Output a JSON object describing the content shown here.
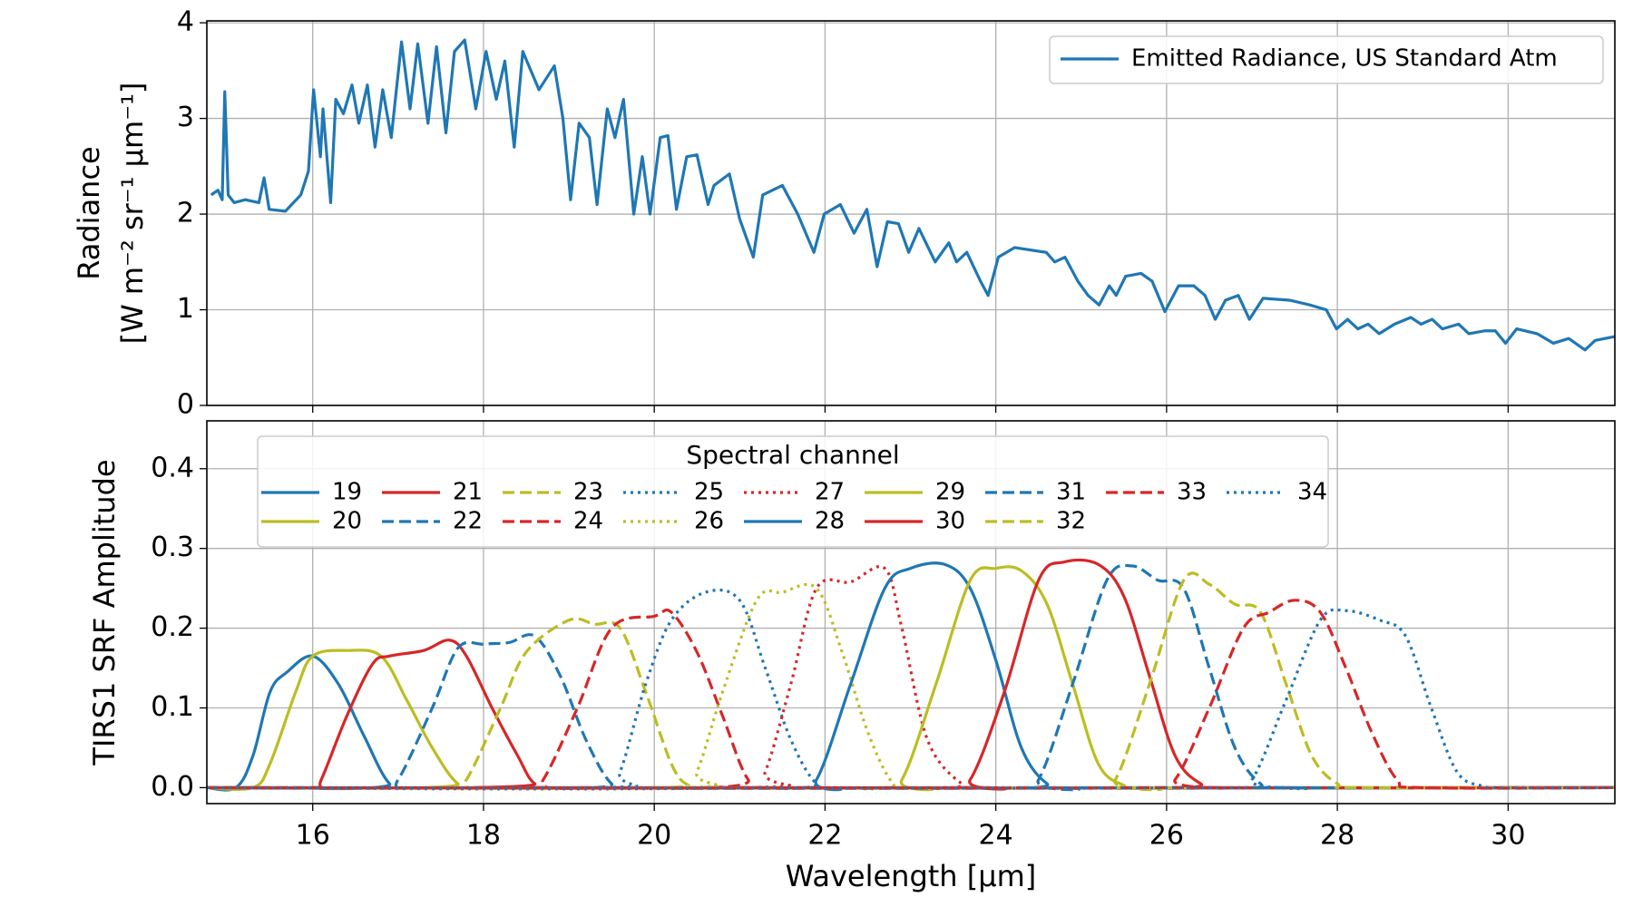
{
  "chart_data": [
    {
      "type": "line",
      "ylabel": [
        "Radiance",
        "[W m⁻² sr⁻¹ μm⁻¹]"
      ],
      "x": [
        14.81,
        14.89,
        14.94,
        14.97,
        15.01,
        15.08,
        15.21,
        15.37,
        15.43,
        15.49,
        15.68,
        15.86,
        15.95,
        16.01,
        16.09,
        16.12,
        16.21,
        16.27,
        16.36,
        16.46,
        16.54,
        16.64,
        16.73,
        16.82,
        16.92,
        17.04,
        17.14,
        17.23,
        17.35,
        17.45,
        17.56,
        17.66,
        17.78,
        17.91,
        18.03,
        18.15,
        18.25,
        18.36,
        18.46,
        18.65,
        18.83,
        18.93,
        19.02,
        19.12,
        19.24,
        19.33,
        19.45,
        19.54,
        19.64,
        19.76,
        19.86,
        19.95,
        20.07,
        20.16,
        20.26,
        20.38,
        20.5,
        20.63,
        20.7,
        20.88,
        21.0,
        21.16,
        21.27,
        21.5,
        21.68,
        21.87,
        21.99,
        22.18,
        22.34,
        22.49,
        22.61,
        22.73,
        22.86,
        22.98,
        23.1,
        23.29,
        23.45,
        23.54,
        23.66,
        23.82,
        23.91,
        24.03,
        24.22,
        24.59,
        24.69,
        24.81,
        24.96,
        25.08,
        25.21,
        25.33,
        25.41,
        25.52,
        25.7,
        25.83,
        25.98,
        26.14,
        26.32,
        26.45,
        26.57,
        26.69,
        26.84,
        26.97,
        27.13,
        27.44,
        27.68,
        27.87,
        27.99,
        28.12,
        28.24,
        28.36,
        28.49,
        28.67,
        28.86,
        28.98,
        29.11,
        29.23,
        29.42,
        29.54,
        29.73,
        29.85,
        29.97,
        30.1,
        30.34,
        30.53,
        30.71,
        30.9,
        31.02,
        31.25
      ],
      "series": [
        {
          "name": "Emitted Radiance, US Standard Atm",
          "color": "#1f77b4",
          "values": [
            2.2,
            2.25,
            2.15,
            3.28,
            2.2,
            2.12,
            2.15,
            2.12,
            2.38,
            2.05,
            2.03,
            2.2,
            2.45,
            3.3,
            2.6,
            3.1,
            2.12,
            3.2,
            3.05,
            3.35,
            2.95,
            3.35,
            2.7,
            3.3,
            2.8,
            3.8,
            3.1,
            3.78,
            2.95,
            3.75,
            2.85,
            3.7,
            3.82,
            3.1,
            3.7,
            3.2,
            3.6,
            2.7,
            3.7,
            3.3,
            3.55,
            3.0,
            2.15,
            2.95,
            2.8,
            2.1,
            3.1,
            2.8,
            3.2,
            2.0,
            2.6,
            2.0,
            2.8,
            2.82,
            2.05,
            2.6,
            2.62,
            2.1,
            2.3,
            2.42,
            1.95,
            1.55,
            2.2,
            2.3,
            2.0,
            1.6,
            2.0,
            2.1,
            1.8,
            2.05,
            1.45,
            1.92,
            1.9,
            1.6,
            1.85,
            1.5,
            1.7,
            1.5,
            1.6,
            1.3,
            1.15,
            1.55,
            1.65,
            1.6,
            1.5,
            1.55,
            1.3,
            1.15,
            1.05,
            1.25,
            1.15,
            1.35,
            1.38,
            1.3,
            0.98,
            1.25,
            1.25,
            1.15,
            0.9,
            1.1,
            1.15,
            0.9,
            1.12,
            1.1,
            1.05,
            1.0,
            0.8,
            0.9,
            0.8,
            0.85,
            0.75,
            0.85,
            0.92,
            0.85,
            0.9,
            0.8,
            0.85,
            0.75,
            0.78,
            0.78,
            0.65,
            0.8,
            0.75,
            0.65,
            0.7,
            0.58,
            0.68,
            0.72
          ]
        }
      ],
      "xlim": [
        14.76,
        31.25
      ],
      "xticks": [
        16,
        18,
        20,
        22,
        24,
        26,
        28,
        30
      ],
      "ylim": [
        0,
        4.02
      ],
      "yticks": [
        0,
        1,
        2,
        3,
        4
      ],
      "grid": true,
      "legend": "upper right"
    },
    {
      "type": "line",
      "xlabel": "Wavelength [μm]",
      "ylabel": [
        "TIRS1 SRF Amplitude"
      ],
      "legend_title": "Spectral channel",
      "legend": "upper center",
      "legend_ncol": 9,
      "series": [
        {
          "name": "19",
          "color": "#1f77b4",
          "linestyle": "solid",
          "x": [
            14.76,
            15.1,
            15.3,
            15.5,
            15.7,
            16.0,
            16.3,
            16.6,
            16.9,
            17.2,
            31.25
          ],
          "values": [
            0,
            0,
            0.04,
            0.12,
            0.145,
            0.165,
            0.13,
            0.065,
            0.005,
            0,
            0
          ]
        },
        {
          "name": "20",
          "color": "#bcbd22",
          "linestyle": "solid",
          "x": [
            14.76,
            15.3,
            15.5,
            15.8,
            16.0,
            16.4,
            16.8,
            17.1,
            17.4,
            17.7,
            18.0,
            31.25
          ],
          "values": [
            0,
            0,
            0.03,
            0.12,
            0.165,
            0.172,
            0.165,
            0.11,
            0.05,
            0.005,
            0,
            0
          ]
        },
        {
          "name": "21",
          "color": "#d62728",
          "linestyle": "solid",
          "x": [
            14.76,
            16.0,
            16.1,
            16.4,
            16.7,
            16.9,
            17.3,
            17.6,
            17.8,
            18.1,
            18.4,
            18.6,
            18.9,
            31.25
          ],
          "values": [
            0,
            0,
            0.01,
            0.09,
            0.155,
            0.165,
            0.172,
            0.185,
            0.165,
            0.1,
            0.04,
            0.005,
            0,
            0
          ]
        },
        {
          "name": "22",
          "color": "#1f77b4",
          "linestyle": "dashed",
          "x": [
            14.76,
            16.8,
            17.0,
            17.4,
            17.7,
            18.0,
            18.3,
            18.6,
            18.9,
            19.2,
            19.5,
            19.8,
            31.25
          ],
          "values": [
            0,
            0,
            0.01,
            0.1,
            0.175,
            0.18,
            0.182,
            0.19,
            0.14,
            0.06,
            0.005,
            0,
            0
          ]
        },
        {
          "name": "23",
          "color": "#bcbd22",
          "linestyle": "dashed",
          "x": [
            14.76,
            17.6,
            17.8,
            18.2,
            18.5,
            19.0,
            19.3,
            19.6,
            19.9,
            20.2,
            20.4,
            20.7,
            31.25
          ],
          "values": [
            0,
            0,
            0.01,
            0.1,
            0.17,
            0.21,
            0.205,
            0.2,
            0.12,
            0.03,
            0.003,
            0,
            0
          ]
        },
        {
          "name": "24",
          "color": "#d62728",
          "linestyle": "dashed",
          "x": [
            14.76,
            18.5,
            18.7,
            19.1,
            19.5,
            20.0,
            20.2,
            20.5,
            20.8,
            21.1,
            21.4,
            31.25
          ],
          "values": [
            0,
            0,
            0.01,
            0.1,
            0.2,
            0.215,
            0.22,
            0.17,
            0.09,
            0.01,
            0,
            0
          ]
        },
        {
          "name": "25",
          "color": "#1f77b4",
          "linestyle": "dotted",
          "x": [
            14.76,
            19.4,
            19.6,
            19.9,
            20.2,
            20.6,
            21.0,
            21.3,
            21.6,
            21.9,
            22.2,
            31.25
          ],
          "values": [
            0,
            0,
            0.02,
            0.13,
            0.21,
            0.245,
            0.235,
            0.15,
            0.06,
            0.005,
            0,
            0
          ]
        },
        {
          "name": "26",
          "color": "#bcbd22",
          "linestyle": "dotted",
          "x": [
            14.76,
            20.3,
            20.5,
            20.8,
            21.2,
            21.5,
            21.9,
            22.2,
            22.5,
            22.8,
            23.1,
            31.25
          ],
          "values": [
            0,
            0,
            0.02,
            0.12,
            0.235,
            0.245,
            0.25,
            0.17,
            0.07,
            0.005,
            0,
            0
          ]
        },
        {
          "name": "27",
          "color": "#d62728",
          "linestyle": "dotted",
          "x": [
            14.76,
            21.1,
            21.3,
            21.6,
            21.9,
            22.3,
            22.7,
            22.9,
            23.2,
            23.6,
            23.9,
            31.25
          ],
          "values": [
            0,
            0,
            0.02,
            0.13,
            0.25,
            0.258,
            0.275,
            0.2,
            0.06,
            0.005,
            0,
            0
          ]
        },
        {
          "name": "28",
          "color": "#1f77b4",
          "linestyle": "solid",
          "x": [
            14.76,
            21.6,
            21.9,
            22.3,
            22.7,
            23.0,
            23.4,
            23.7,
            24.0,
            24.3,
            24.6,
            24.9,
            31.25
          ],
          "values": [
            0,
            0,
            0.01,
            0.13,
            0.25,
            0.275,
            0.28,
            0.25,
            0.16,
            0.05,
            0.005,
            0,
            0
          ]
        },
        {
          "name": "29",
          "color": "#bcbd22",
          "linestyle": "solid",
          "x": [
            14.76,
            22.6,
            22.9,
            23.3,
            23.7,
            24.0,
            24.3,
            24.6,
            24.9,
            25.2,
            25.5,
            25.8,
            31.25
          ],
          "values": [
            0,
            0,
            0.01,
            0.13,
            0.26,
            0.275,
            0.272,
            0.23,
            0.13,
            0.03,
            0.003,
            0,
            0
          ]
        },
        {
          "name": "30",
          "color": "#d62728",
          "linestyle": "solid",
          "x": [
            14.76,
            23.4,
            23.7,
            24.1,
            24.5,
            24.8,
            25.2,
            25.5,
            25.8,
            26.1,
            26.4,
            26.7,
            31.25
          ],
          "values": [
            0,
            0,
            0.01,
            0.12,
            0.26,
            0.283,
            0.28,
            0.24,
            0.14,
            0.04,
            0.005,
            0,
            0
          ]
        },
        {
          "name": "31",
          "color": "#1f77b4",
          "linestyle": "dashed",
          "x": [
            14.76,
            24.2,
            24.5,
            24.9,
            25.3,
            25.6,
            25.9,
            26.2,
            26.5,
            26.8,
            27.1,
            27.4,
            31.25
          ],
          "values": [
            0,
            0,
            0.01,
            0.13,
            0.26,
            0.278,
            0.26,
            0.25,
            0.15,
            0.05,
            0.005,
            0,
            0
          ]
        },
        {
          "name": "32",
          "color": "#bcbd22",
          "linestyle": "dashed",
          "x": [
            14.76,
            25.1,
            25.4,
            25.8,
            26.2,
            26.5,
            26.8,
            27.1,
            27.4,
            27.7,
            28.0,
            28.3,
            31.25
          ],
          "values": [
            0,
            0,
            0.01,
            0.13,
            0.26,
            0.255,
            0.23,
            0.22,
            0.13,
            0.04,
            0.005,
            0,
            0
          ]
        },
        {
          "name": "33",
          "color": "#d62728",
          "linestyle": "dashed",
          "x": [
            14.76,
            25.8,
            26.1,
            26.5,
            26.9,
            27.2,
            27.5,
            27.8,
            28.1,
            28.4,
            28.7,
            29.0,
            31.25
          ],
          "values": [
            0,
            0,
            0.01,
            0.1,
            0.2,
            0.22,
            0.235,
            0.22,
            0.15,
            0.07,
            0.01,
            0,
            0
          ]
        },
        {
          "name": "34",
          "color": "#1f77b4",
          "linestyle": "dotted",
          "x": [
            14.76,
            26.7,
            27.0,
            27.4,
            27.8,
            28.1,
            28.5,
            28.8,
            29.1,
            29.4,
            29.7,
            30.0,
            31.25
          ],
          "values": [
            0,
            0,
            0.01,
            0.11,
            0.21,
            0.222,
            0.21,
            0.19,
            0.1,
            0.02,
            0.002,
            0,
            0
          ]
        }
      ],
      "xlim": [
        14.76,
        31.25
      ],
      "xticks": [
        16,
        18,
        20,
        22,
        24,
        26,
        28,
        30
      ],
      "ylim": [
        -0.02,
        0.46
      ],
      "yticks": [
        {
          "value": 0,
          "label": "0.0"
        },
        0.1,
        0.2,
        0.3,
        0.4
      ],
      "grid": true
    }
  ]
}
